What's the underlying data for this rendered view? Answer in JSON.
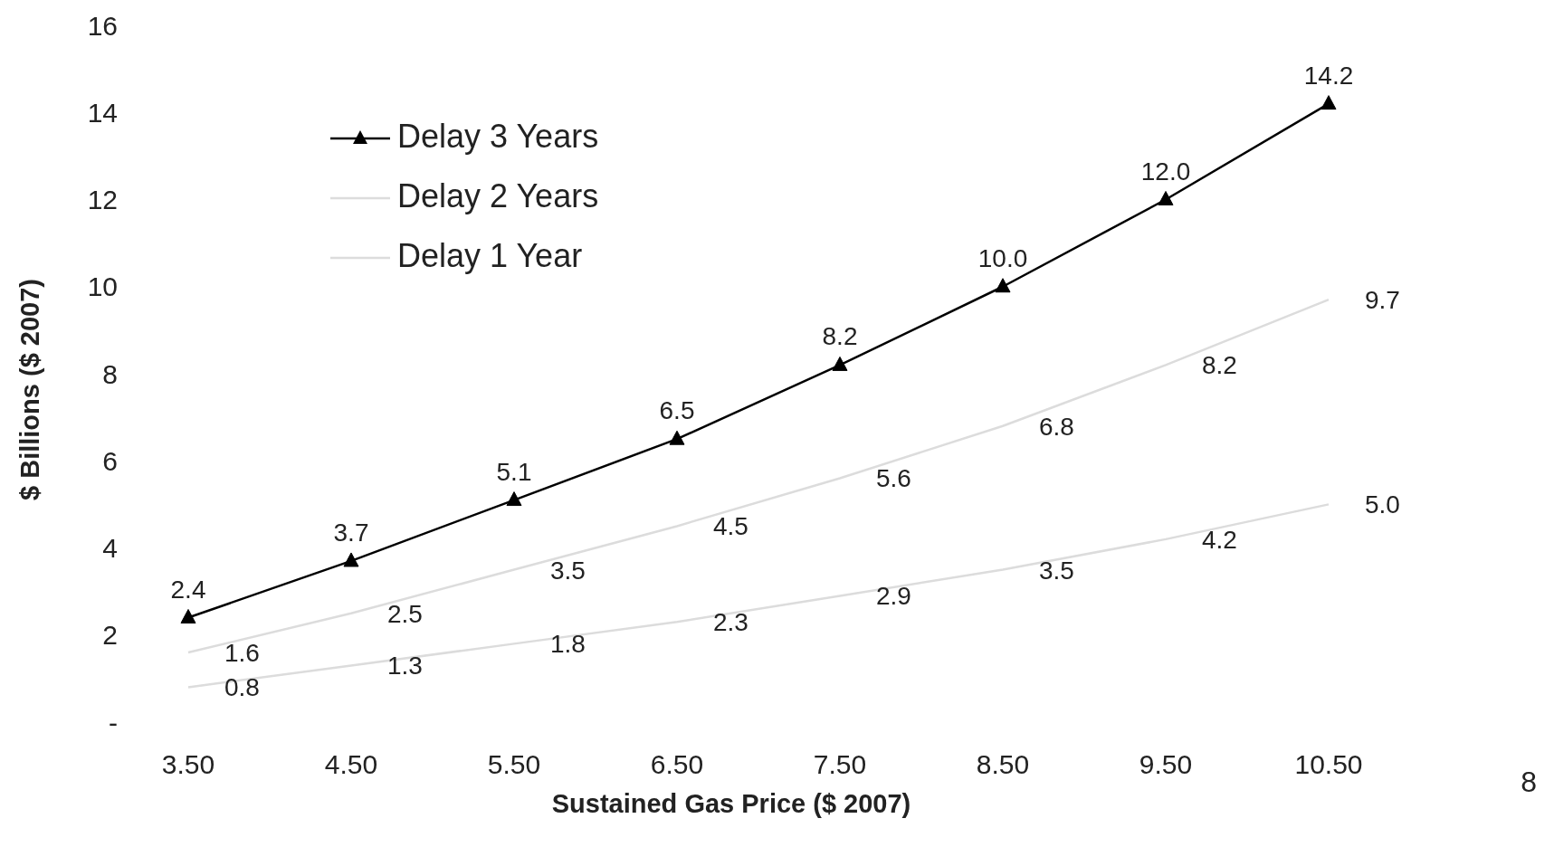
{
  "chart_data": {
    "type": "line",
    "xlabel": "Sustained Gas Price  ($ 2007)",
    "ylabel": "$ Billions ($ 2007)",
    "categories": [
      "3.50",
      "4.50",
      "5.50",
      "6.50",
      "7.50",
      "8.50",
      "9.50",
      "10.50"
    ],
    "series": [
      {
        "name": "Delay 3 Years",
        "color": "#000000",
        "marker": "triangle",
        "values": [
          2.4,
          3.7,
          5.1,
          6.5,
          8.2,
          10.0,
          12.0,
          14.2
        ],
        "value_labels": [
          "2.4",
          "3.7",
          "5.1",
          "6.5",
          "8.2",
          "10.0",
          "12.0",
          "14.2"
        ]
      },
      {
        "name": "Delay 2 Years",
        "color": "#dcdcdc",
        "marker": "none",
        "values": [
          1.6,
          2.5,
          3.5,
          4.5,
          5.6,
          6.8,
          8.2,
          9.7
        ],
        "value_labels": [
          "1.6",
          "2.5",
          "3.5",
          "4.5",
          "5.6",
          "6.8",
          "8.2",
          "9.7"
        ]
      },
      {
        "name": "Delay 1 Year",
        "color": "#dcdcdc",
        "marker": "none",
        "values": [
          0.8,
          1.3,
          1.8,
          2.3,
          2.9,
          3.5,
          4.2,
          5.0
        ],
        "value_labels": [
          "0.8",
          "1.3",
          "1.8",
          "2.3",
          "2.9",
          "3.5",
          "4.2",
          "5.0"
        ]
      }
    ],
    "ylim": [
      0,
      16
    ],
    "yticks": [
      {
        "value": 0,
        "label": "-"
      },
      2,
      4,
      6,
      8,
      10,
      12,
      14,
      16
    ],
    "grid": false,
    "legend": "top left",
    "line_style": "solid",
    "annotations": [
      "8"
    ]
  }
}
